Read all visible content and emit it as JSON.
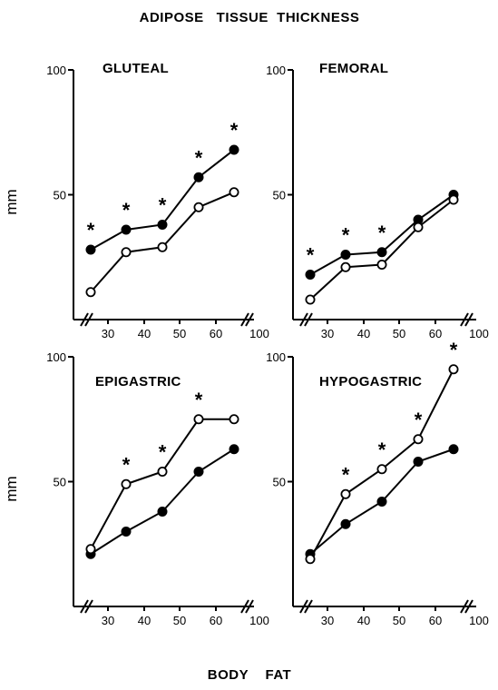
{
  "figure": {
    "title": "ADIPOSE   TISSUE  THICKNESS",
    "xlabel": "BODY    FAT"
  },
  "chart_data": [
    {
      "type": "line",
      "title": "GLUTEAL",
      "ylabel": "mm",
      "ylim": [
        0,
        100
      ],
      "yticks": [
        "50",
        "100"
      ],
      "x": [
        25,
        35,
        45,
        55,
        65
      ],
      "xticks": [
        "30",
        "40",
        "50",
        "60",
        "100"
      ],
      "axis_break_marks": true,
      "series": [
        {
          "marker": "filled",
          "values": [
            28,
            36,
            38,
            57,
            68
          ]
        },
        {
          "marker": "open",
          "values": [
            11,
            27,
            29,
            45,
            51
          ]
        }
      ],
      "significance": [
        true,
        true,
        true,
        true,
        true
      ],
      "significance_mark": "*"
    },
    {
      "type": "line",
      "title": "FEMORAL",
      "ylabel": "",
      "ylim": [
        0,
        100
      ],
      "yticks": [
        "50",
        "100"
      ],
      "x": [
        25,
        35,
        45,
        55,
        65
      ],
      "xticks": [
        "30",
        "40",
        "50",
        "60",
        "100"
      ],
      "axis_break_marks": true,
      "series": [
        {
          "marker": "filled",
          "values": [
            18,
            26,
            27,
            40,
            50
          ]
        },
        {
          "marker": "open",
          "values": [
            8,
            21,
            22,
            37,
            48
          ]
        }
      ],
      "significance": [
        true,
        true,
        true,
        false,
        false
      ],
      "significance_mark": "*"
    },
    {
      "type": "line",
      "title": "EPIGASTRIC",
      "ylabel": "mm",
      "ylim": [
        0,
        100
      ],
      "yticks": [
        "50",
        "100"
      ],
      "x": [
        25,
        35,
        45,
        55,
        65
      ],
      "xticks": [
        "30",
        "40",
        "50",
        "60",
        "100"
      ],
      "axis_break_marks": true,
      "series": [
        {
          "marker": "filled",
          "values": [
            21,
            30,
            38,
            54,
            63
          ]
        },
        {
          "marker": "open",
          "values": [
            23,
            49,
            54,
            75,
            75
          ]
        }
      ],
      "significance": [
        false,
        true,
        true,
        true,
        false
      ],
      "significance_mark": "*"
    },
    {
      "type": "line",
      "title": "HYPOGASTRIC",
      "ylabel": "",
      "ylim": [
        0,
        100
      ],
      "yticks": [
        "50",
        "100"
      ],
      "x": [
        25,
        35,
        45,
        55,
        65
      ],
      "xticks": [
        "30",
        "40",
        "50",
        "60",
        "100"
      ],
      "axis_break_marks": true,
      "series": [
        {
          "marker": "filled",
          "values": [
            21,
            33,
            42,
            58,
            63
          ]
        },
        {
          "marker": "open",
          "values": [
            19,
            45,
            55,
            67,
            95
          ]
        }
      ],
      "significance": [
        false,
        true,
        true,
        true,
        true
      ],
      "significance_mark": "*"
    }
  ]
}
